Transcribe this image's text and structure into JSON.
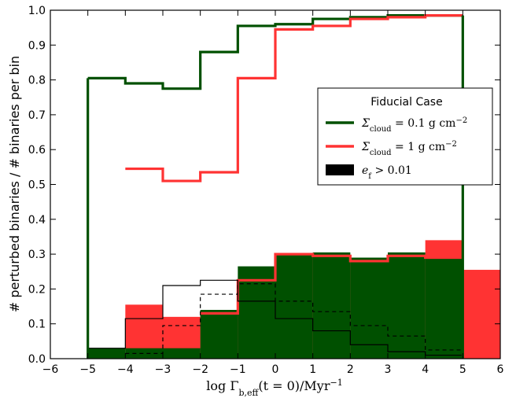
{
  "chart_data": {
    "type": "step",
    "xlabel": "log Γb,eff(t=0)/Myr⁻¹",
    "xlabel_parts": {
      "pre": "log Γ",
      "sub": "b,eff",
      "mid": "(t = 0)/Myr",
      "sup": "−1"
    },
    "ylabel": "# perturbed binaries / # binaries per bin",
    "xlim": [
      -6,
      6
    ],
    "ylim": [
      0,
      1.0
    ],
    "xticks": [
      "−6",
      "−5",
      "−4",
      "−3",
      "−2",
      "−1",
      "0",
      "1",
      "2",
      "3",
      "4",
      "5",
      "6"
    ],
    "yticks": [
      "0.0",
      "0.1",
      "0.2",
      "0.3",
      "0.4",
      "0.5",
      "0.6",
      "0.7",
      "0.8",
      "0.9",
      "1.0"
    ],
    "legend": {
      "title": "Fiducial Case",
      "placement": "right",
      "entries": [
        {
          "key": "s01",
          "label": "Σcloud=0.1 g cm⁻²",
          "parts": {
            "pre": "Σ",
            "sub": "cloud",
            "mid": " = 0.1 g cm",
            "sup": "−2"
          },
          "color": "#005000"
        },
        {
          "key": "s1",
          "label": "Σcloud=1 g cm⁻²",
          "parts": {
            "pre": "Σ",
            "sub": "cloud",
            "mid": " = 1 g cm",
            "sup": "−2"
          },
          "color": "#ff3333"
        },
        {
          "key": "ef",
          "label": "ef>0.01",
          "parts": {
            "pre": "e",
            "sub": "f",
            "mid": " > 0.01",
            "sup": ""
          },
          "color": "#000000"
        }
      ]
    },
    "bin_edges": [
      -5,
      -4,
      -3,
      -2,
      -1,
      0,
      1,
      2,
      3,
      4,
      5,
      6
    ],
    "series": [
      {
        "key": "s01_total",
        "style": "step-thick",
        "color": "#005000",
        "values": [
          0.805,
          0.79,
          0.775,
          0.88,
          0.955,
          0.96,
          0.975,
          0.98,
          0.985,
          0.985,
          null
        ]
      },
      {
        "key": "s1_total",
        "style": "step-thick",
        "color": "#ff3333",
        "values": [
          null,
          0.545,
          0.51,
          0.535,
          0.805,
          0.945,
          0.955,
          0.975,
          0.98,
          0.985,
          null
        ]
      },
      {
        "key": "s1_ef_fill",
        "style": "fill",
        "color": "#ff3333",
        "values": [
          null,
          0.155,
          0.12,
          0.135,
          0.225,
          0.3,
          0.295,
          0.285,
          0.295,
          0.34,
          0.255
        ]
      },
      {
        "key": "s01_ef_fill",
        "style": "fill",
        "color": "#005000",
        "values": [
          0.03,
          0.03,
          0.03,
          0.14,
          0.265,
          0.3,
          0.305,
          0.29,
          0.305,
          0.29,
          null
        ]
      },
      {
        "key": "s1_ef_outline",
        "style": "step-thick",
        "color": "#ff3333",
        "values": [
          null,
          null,
          null,
          0.13,
          0.225,
          0.3,
          0.295,
          0.28,
          0.295,
          0.29,
          null
        ]
      },
      {
        "key": "thin_solid",
        "style": "step-thin",
        "color": "#000000",
        "values": [
          0.03,
          0.115,
          0.21,
          0.225,
          0.165,
          0.115,
          0.08,
          0.04,
          0.02,
          0.01,
          null
        ]
      },
      {
        "key": "thin_dashed",
        "style": "step-dashed",
        "color": "#000000",
        "values": [
          null,
          0.015,
          0.095,
          0.185,
          0.215,
          0.165,
          0.135,
          0.095,
          0.065,
          0.025,
          null
        ]
      }
    ]
  }
}
